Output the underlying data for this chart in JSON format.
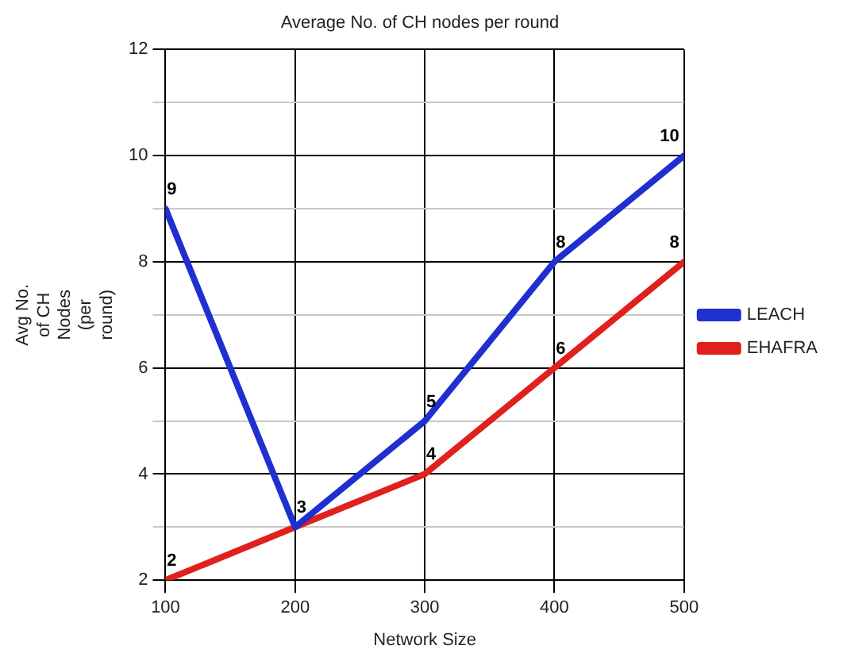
{
  "chart_data": {
    "type": "line",
    "title": "Average No. of CH nodes per round",
    "xlabel": "Network Size",
    "ylabel": "Avg No. of CH Nodes (per round)",
    "x": [
      100,
      200,
      300,
      400,
      500
    ],
    "series": [
      {
        "name": "LEACH",
        "color": "#1f2fd0",
        "values": [
          9,
          3,
          5,
          8,
          10
        ],
        "value_labels": [
          "9",
          "3",
          "5",
          "8",
          "10"
        ]
      },
      {
        "name": "EHAFRA",
        "color": "#e0201c",
        "values": [
          2,
          3,
          4,
          6,
          8
        ],
        "value_labels": [
          "2",
          null,
          "4",
          "6",
          "8"
        ]
      }
    ],
    "xlim": [
      100,
      500
    ],
    "xticks": [
      100,
      200,
      300,
      400,
      500
    ],
    "ylim": [
      2,
      12
    ],
    "yticks": [
      2,
      {
        "value": 3,
        "label": null
      },
      4,
      {
        "value": 5,
        "label": null
      },
      6,
      {
        "value": 7,
        "label": null
      },
      8,
      {
        "value": 9,
        "label": null
      },
      10,
      {
        "value": 11,
        "label": null
      },
      12
    ],
    "grid": true,
    "legend": "right",
    "marker": "none",
    "line_style": "solid"
  }
}
